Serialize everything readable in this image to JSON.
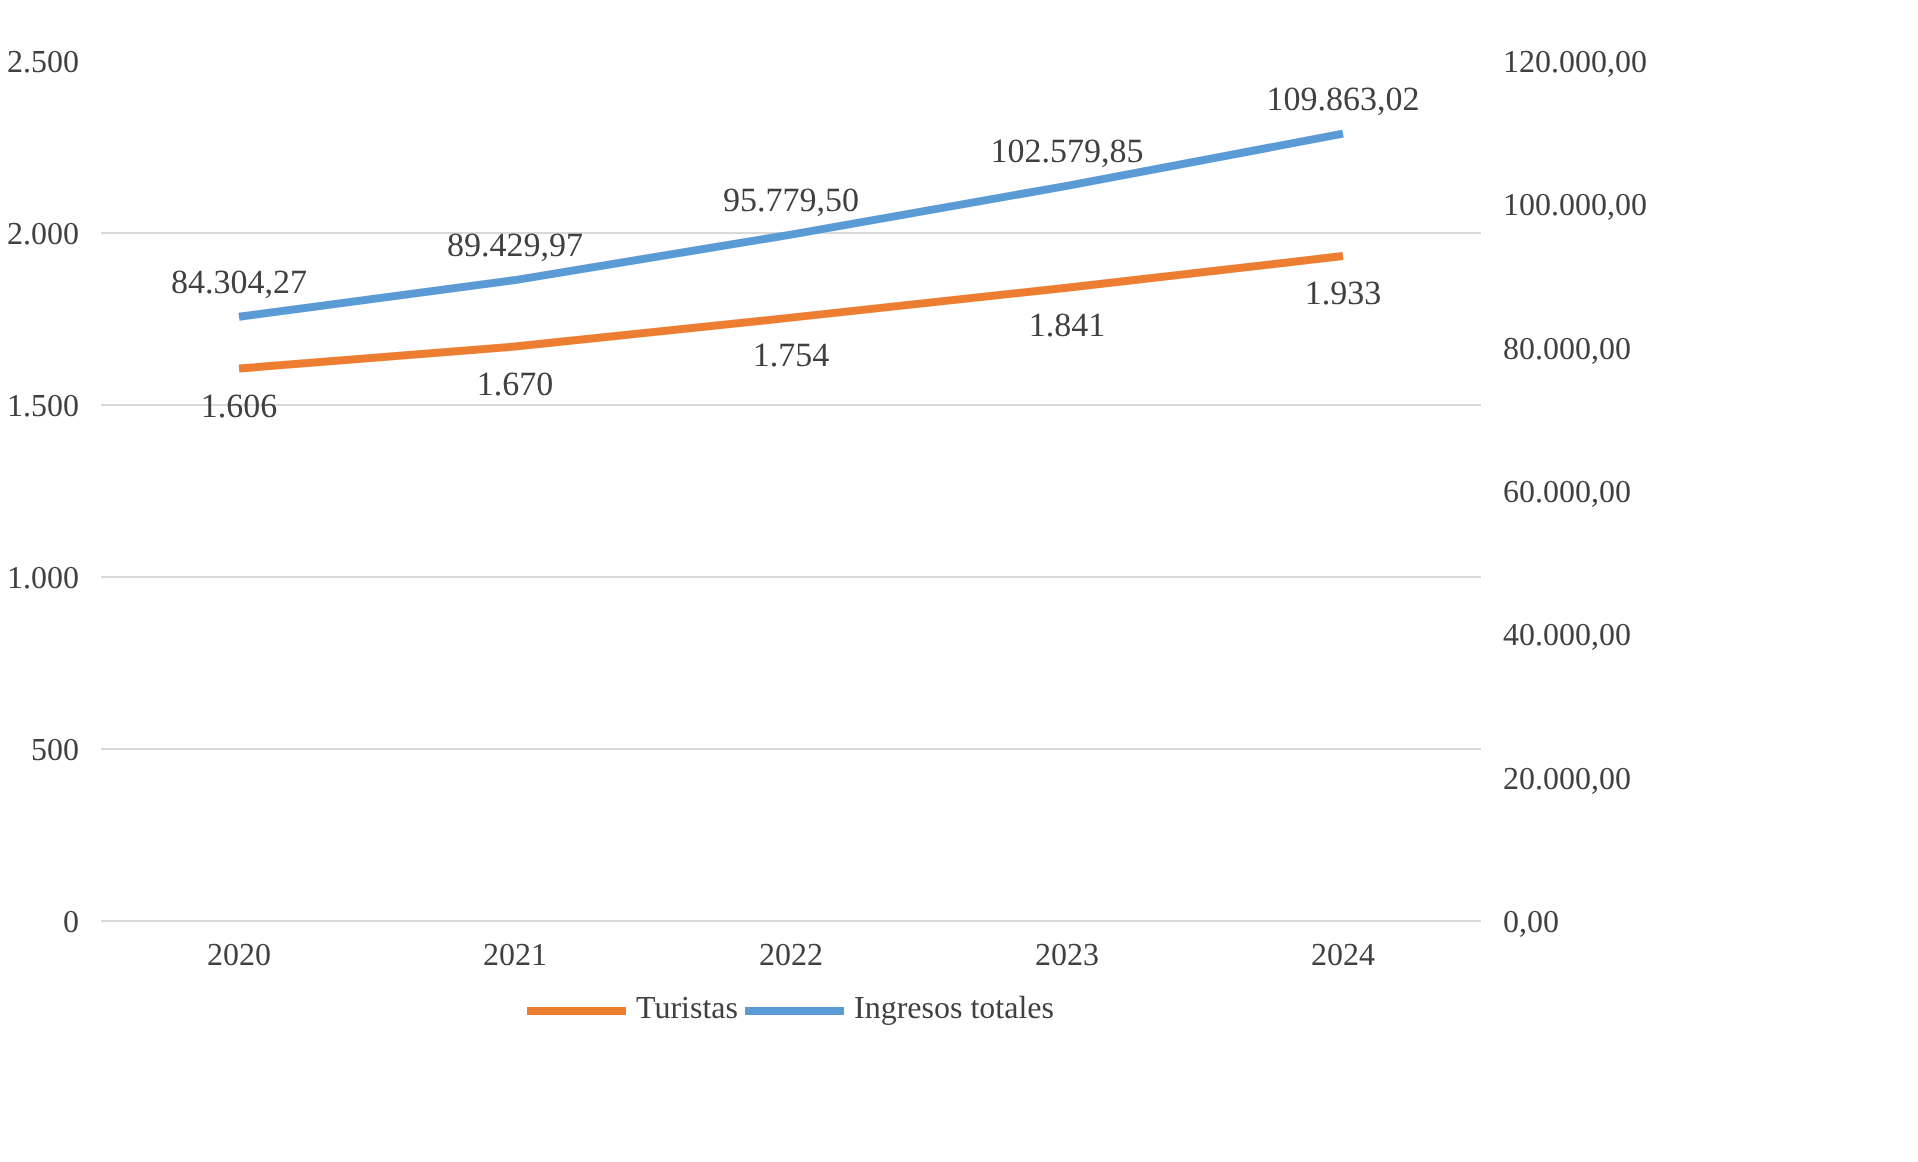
{
  "chart_data": {
    "type": "line",
    "categories": [
      "2020",
      "2021",
      "2022",
      "2023",
      "2024"
    ],
    "series": [
      {
        "name": "Turistas",
        "color": "#ed7d31",
        "values": [
          1606,
          1670,
          1754,
          1841,
          1933
        ],
        "value_labels": [
          "1.606",
          "1.670",
          "1.754",
          "1.841",
          "1.933"
        ]
      },
      {
        "name": "Ingresos totales",
        "color": "#5b9bd5",
        "axis": "y2",
        "values": [
          84304.27,
          89429.97,
          95779.5,
          102579.85,
          109863.02
        ],
        "value_labels": [
          "84.304,27",
          "89.429,97",
          "95.779,50",
          "102.579,85",
          "109.863,02"
        ]
      }
    ],
    "ylim": [
      0,
      2500
    ],
    "yticks": [
      0,
      500,
      {
        "value": 1000,
        "label": "1.000"
      },
      {
        "value": 1500,
        "label": "1.500"
      },
      {
        "value": 2000,
        "label": "2.000"
      },
      {
        "value": 2500,
        "label": "2.500"
      }
    ],
    "y2lim": [
      0,
      120000
    ],
    "y2ticks": [
      {
        "value": 0,
        "label": "0,00"
      },
      {
        "value": 20000,
        "label": "20.000,00"
      },
      {
        "value": 40000,
        "label": "40.000,00"
      },
      {
        "value": 60000,
        "label": "60.000,00"
      },
      {
        "value": 80000,
        "label": "80.000,00"
      },
      {
        "value": 100000,
        "label": "100.000,00"
      },
      {
        "value": 120000,
        "label": "120.000,00"
      }
    ],
    "grid": "y",
    "legend": "bottom",
    "marker": "none",
    "line_style": "solid"
  }
}
